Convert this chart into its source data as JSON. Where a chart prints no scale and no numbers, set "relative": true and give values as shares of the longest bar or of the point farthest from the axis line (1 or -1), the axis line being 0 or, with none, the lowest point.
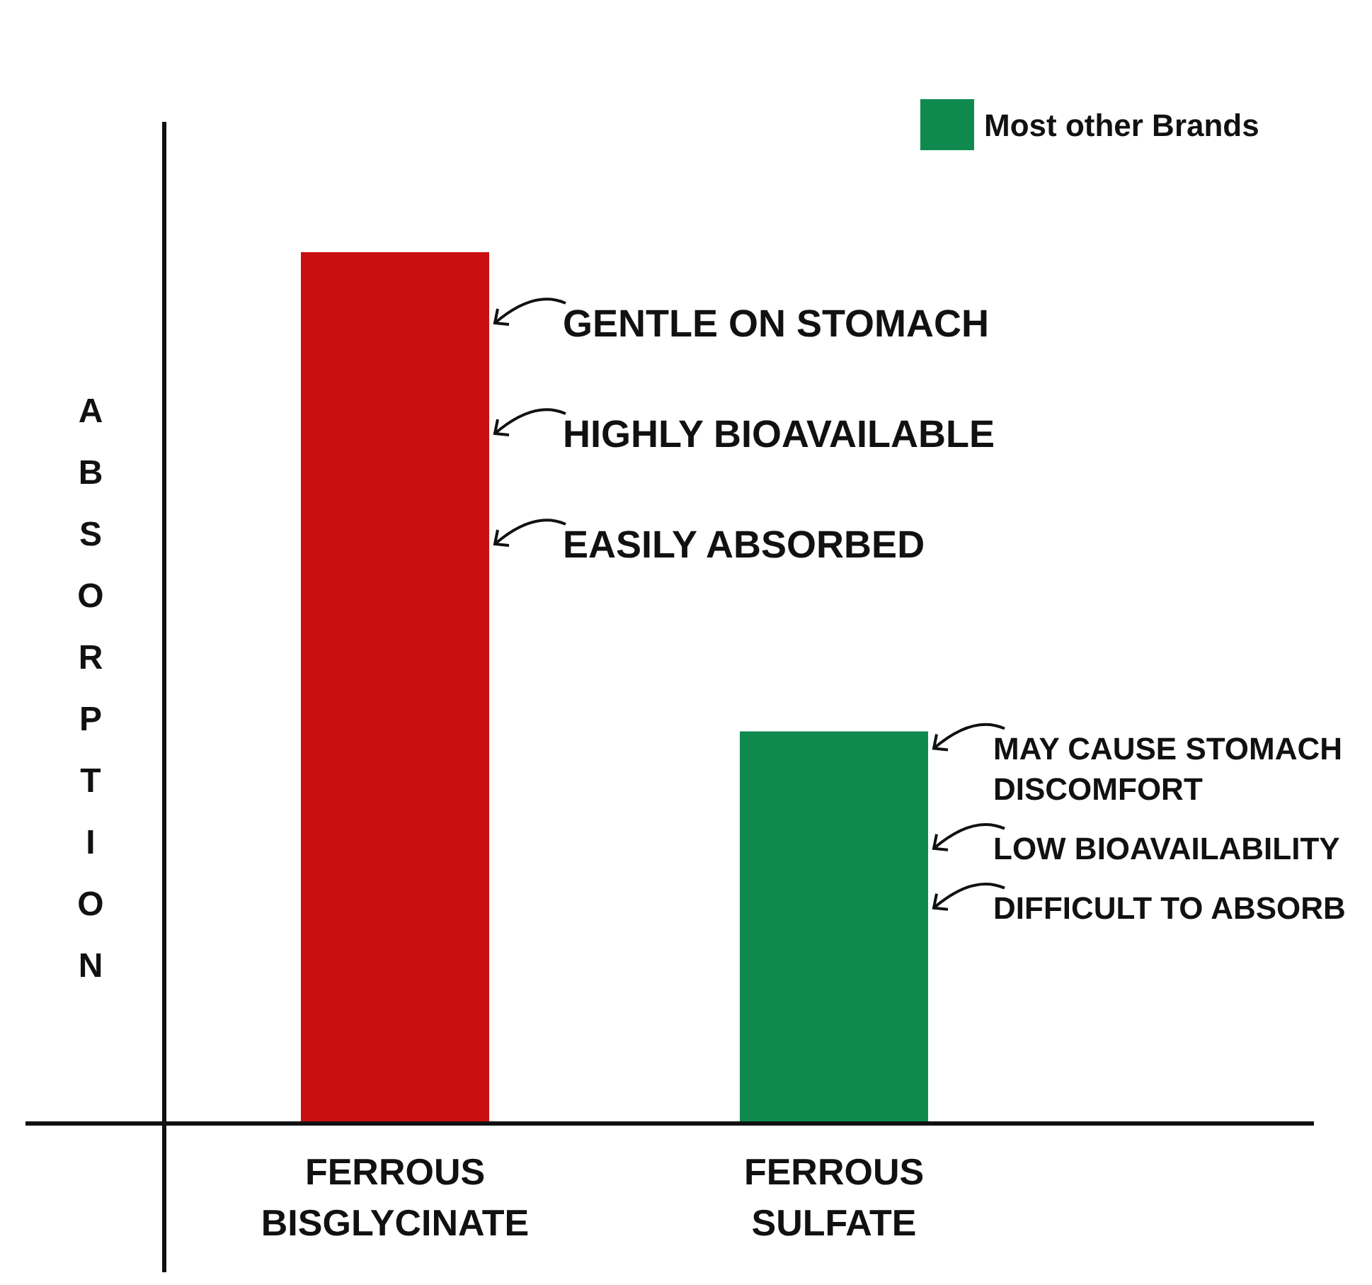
{
  "chart_data": {
    "type": "bar",
    "relative": true,
    "stacked": true,
    "ylabel": "ABSORPTION",
    "legend": "top right",
    "categories": [
      "FERROUS BISGLYCINATE",
      "FERROUS SULFATE"
    ],
    "series": [
      {
        "color": "#c81010",
        "values": [
          1,
          null
        ]
      },
      {
        "name": "Most other Brands",
        "color": "#0e8a4f",
        "values": [
          null,
          0.45
        ]
      }
    ],
    "annotations": [
      "GENTLE ON STOMACH",
      "HIGHLY BIOAVAILABLE",
      "EASILY ABSORBED",
      "MAY CAUSE STOMACH DISCOMFORT",
      "LOW BIOAVAILABILITY",
      "DIFFICULT TO ABSORB"
    ]
  }
}
